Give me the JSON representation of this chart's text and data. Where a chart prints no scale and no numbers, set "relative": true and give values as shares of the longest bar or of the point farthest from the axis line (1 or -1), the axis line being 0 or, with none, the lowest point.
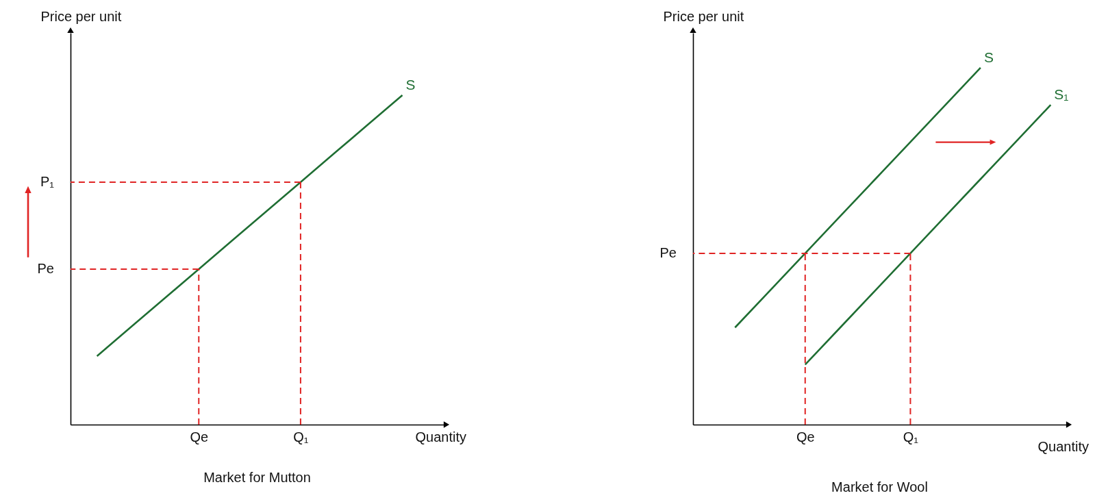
{
  "chart_data": [
    {
      "type": "line",
      "title": "Market for Mutton",
      "xlabel": "Quantity",
      "ylabel": "Price per unit",
      "relative": true,
      "categories": [
        null,
        null,
        null,
        "Qe",
        null,
        null,
        "Q₁",
        null,
        null,
        null
      ],
      "series": [
        {
          "name": "S",
          "color": "#1f6e33",
          "values": [
            0.208,
            0.296,
            0.384,
            0.472,
            0.56,
            0.648,
            0.736,
            0.824,
            0.912,
            1.0
          ]
        }
      ],
      "ref_lines": [
        {
          "axis": "x",
          "value": "Qe",
          "color": "#e02424",
          "line_style": "dashed"
        },
        {
          "axis": "x",
          "value": "Q₁",
          "color": "#e02424",
          "line_style": "dashed"
        },
        {
          "axis": "y",
          "value": 0.472,
          "label": "Pe",
          "color": "#e02424",
          "line_style": "dashed"
        },
        {
          "axis": "y",
          "value": 0.736,
          "label": "P₁",
          "color": "#e02424",
          "line_style": "dashed"
        }
      ]
    },
    {
      "type": "line",
      "title": "Market for Wool",
      "xlabel": "Quantity",
      "ylabel": "Price per unit",
      "relative": true,
      "categories": [
        null,
        null,
        "Qe",
        null,
        null,
        "Q₁",
        null,
        null,
        null,
        null
      ],
      "series": [
        {
          "name": "S",
          "color": "#1f6e33",
          "values": [
            0.272,
            0.376,
            0.48,
            0.584,
            0.688,
            0.792,
            0.896,
            1.0,
            null,
            null
          ]
        },
        {
          "name": "S₁",
          "color": "#1f6e33",
          "values": [
            null,
            null,
            0.168,
            0.272,
            0.376,
            0.48,
            0.584,
            0.688,
            0.792,
            0.896
          ]
        }
      ],
      "ref_lines": [
        {
          "axis": "x",
          "value": "Qe",
          "color": "#e02424",
          "line_style": "dashed"
        },
        {
          "axis": "x",
          "value": "Q₁",
          "color": "#e02424",
          "line_style": "dashed"
        },
        {
          "axis": "y",
          "value": 0.48,
          "label": "Pe",
          "color": "#e02424",
          "line_style": "dashed"
        }
      ]
    }
  ]
}
